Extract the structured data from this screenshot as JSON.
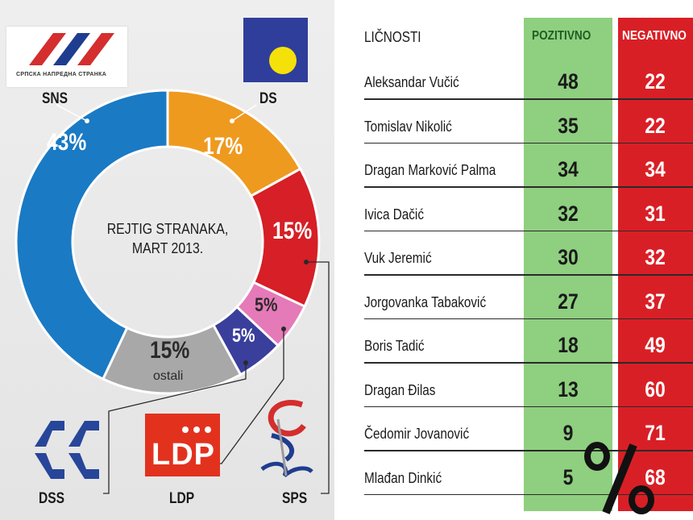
{
  "chart_data": [
    {
      "type": "pie",
      "title": "",
      "center_label": [
        "REJTIG STRANAKA,",
        "MART 2013."
      ],
      "series": [
        {
          "name": "SNS",
          "value": 43,
          "label": "43%",
          "color": "#1a7ac4"
        },
        {
          "name": "DS",
          "value": 17,
          "label": "17%",
          "color": "#ee9a1f"
        },
        {
          "name": "SPS",
          "value": 15,
          "label": "15%",
          "color": "#d61f26"
        },
        {
          "name": "LDP",
          "value": 5,
          "label": "5%",
          "color": "#e57ab8"
        },
        {
          "name": "DSS",
          "value": 5,
          "label": "5%",
          "color": "#3a3f9c"
        },
        {
          "name": "ostali",
          "value": 15,
          "label": "15%",
          "color": "#a8a8a8"
        }
      ]
    },
    {
      "type": "table",
      "columns": [
        "LIČNOSTI",
        "POZITIVNO",
        "NEGATIVNO"
      ],
      "rows": [
        {
          "name": "Aleksandar Vučić",
          "pozitivno": 48,
          "negativno": 22
        },
        {
          "name": "Tomislav Nikolić",
          "pozitivno": 35,
          "negativno": 22
        },
        {
          "name": "Dragan Marković Palma",
          "pozitivno": 34,
          "negativno": 34
        },
        {
          "name": "Ivica Dačić",
          "pozitivno": 32,
          "negativno": 31
        },
        {
          "name": "Vuk Jeremić",
          "pozitivno": 30,
          "negativno": 32
        },
        {
          "name": "Jorgovanka Tabaković",
          "pozitivno": 27,
          "negativno": 37
        },
        {
          "name": "Boris Tadić",
          "pozitivno": 18,
          "negativno": 49
        },
        {
          "name": "Dragan Đilas",
          "pozitivno": 13,
          "negativno": 60
        },
        {
          "name": "Čedomir Jovanović",
          "pozitivno": 9,
          "negativno": 71
        },
        {
          "name": "Mlađan Dinkić",
          "pozitivno": 5,
          "negativno": 68
        }
      ]
    }
  ],
  "labels": {
    "sns": "SNS",
    "ds": "DS",
    "dss": "DSS",
    "ldp": "LDP",
    "sps": "SPS",
    "ostali": "ostali",
    "pct_43": "43%",
    "pct_17": "17%",
    "pct_15_sps": "15%",
    "pct_5_ldp": "5%",
    "pct_5_dss": "5%",
    "pct_15_ostali": "15%"
  },
  "logos": {
    "sns_caption": "СРПСКА НАПРЕДНА СТРАНКА",
    "ldp_text": "LDP"
  },
  "table_header": {
    "name": "LIČNOSTI",
    "pos": "POZITIVNO",
    "neg": "NEGATIVNO"
  }
}
